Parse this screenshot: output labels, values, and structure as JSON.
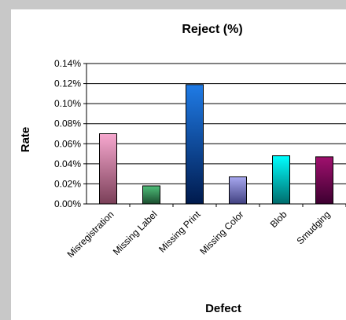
{
  "chart_data": {
    "type": "bar",
    "title": "Reject (%)",
    "xlabel": "Defect",
    "ylabel": "Rate",
    "categories": [
      "Misregistration",
      "Missing Label",
      "Missing Print",
      "Missing Color",
      "Blob",
      "Smudging"
    ],
    "values": [
      0.07,
      0.018,
      0.119,
      0.027,
      0.048,
      0.047
    ],
    "ylim": [
      0,
      0.14
    ],
    "yticks": [
      0,
      0.02,
      0.04,
      0.06,
      0.08,
      0.1,
      0.12,
      0.14
    ],
    "ytick_labels": [
      "0.00%",
      "0.02%",
      "0.04%",
      "0.06%",
      "0.08%",
      "0.10%",
      "0.12%",
      "0.14%"
    ],
    "grid": "horizontal",
    "legend": "none",
    "bar_colors": [
      [
        "#f7a8cf",
        "#7a3f58"
      ],
      [
        "#4fbf7a",
        "#1a4d2e"
      ],
      [
        "#1f7be6",
        "#001a4d"
      ],
      [
        "#a8a8f0",
        "#404080"
      ],
      [
        "#00ffff",
        "#006b6b"
      ],
      [
        "#a0106e",
        "#3d0030"
      ]
    ]
  }
}
